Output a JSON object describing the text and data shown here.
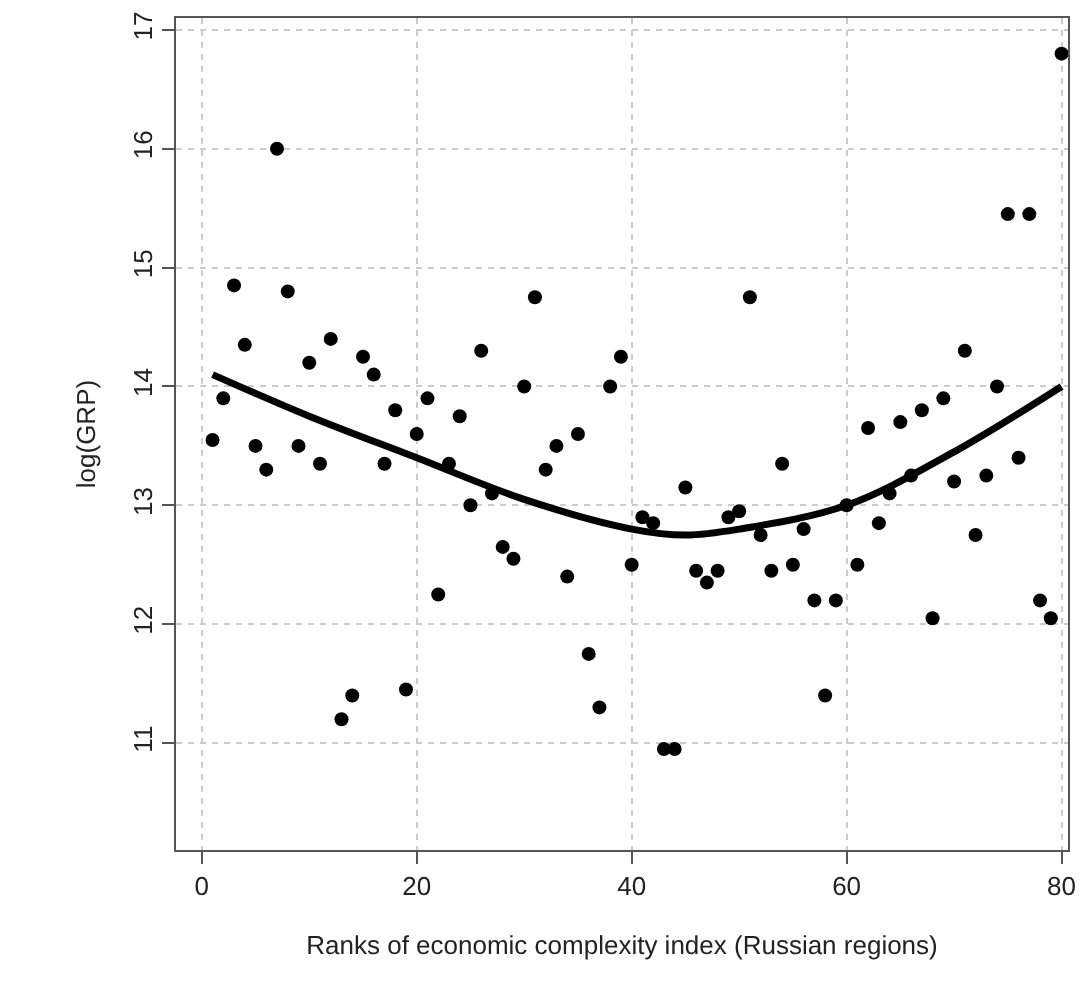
{
  "chart_data": {
    "type": "scatter",
    "xlabel": "Ranks of economic complexity index (Russian regions)",
    "ylabel": "log(GRP)",
    "xlim": [
      -2.4,
      80.6
    ],
    "xticks": [
      0,
      20,
      40,
      60,
      80
    ],
    "ylim": [
      10.1,
      17.1
    ],
    "yticks": [
      11,
      12,
      13,
      14,
      15,
      16,
      17
    ],
    "grid": true,
    "marker": "circle",
    "series": [
      {
        "color": "#000000",
        "x": [
          1,
          2,
          3,
          4,
          5,
          6,
          7,
          8,
          9,
          10,
          11,
          12,
          13,
          14,
          15,
          16,
          17,
          18,
          19,
          20,
          21,
          22,
          23,
          24,
          25,
          26,
          27,
          28,
          29,
          30,
          31,
          32,
          33,
          34,
          35,
          36,
          37,
          38,
          39,
          40,
          41,
          42,
          43,
          44,
          45,
          46,
          47,
          48,
          49,
          50,
          51,
          52,
          53,
          54,
          55,
          56,
          57,
          58,
          59,
          60,
          61,
          62,
          63,
          64,
          65,
          66,
          67,
          68,
          69,
          70,
          71,
          72,
          73,
          74,
          75,
          76,
          77,
          78,
          79,
          80
        ],
        "values": [
          13.55,
          13.9,
          14.85,
          14.35,
          13.5,
          13.3,
          16.0,
          14.8,
          13.5,
          14.2,
          13.35,
          14.4,
          11.2,
          11.4,
          14.25,
          14.1,
          13.35,
          13.8,
          11.45,
          13.6,
          13.9,
          12.25,
          13.35,
          13.75,
          13.0,
          14.3,
          13.1,
          12.65,
          12.55,
          14.0,
          14.75,
          13.3,
          13.5,
          12.4,
          13.6,
          11.75,
          11.3,
          14.0,
          14.25,
          12.5,
          12.9,
          12.85,
          10.95,
          10.95,
          13.15,
          12.45,
          12.35,
          12.45,
          12.9,
          12.95,
          14.75,
          12.75,
          12.45,
          13.35,
          12.5,
          12.8,
          12.2,
          11.4,
          12.2,
          13.0,
          12.5,
          13.65,
          12.85,
          13.1,
          13.7,
          13.25,
          13.8,
          12.05,
          13.9,
          13.2,
          14.3,
          12.75,
          13.25,
          14.0,
          15.45,
          13.4,
          15.45,
          12.2,
          12.05,
          16.8
        ]
      },
      {
        "type": "line",
        "color": "#000000",
        "marker": "none",
        "line_style": "solid",
        "x": [
          1,
          10,
          20,
          30,
          40,
          45,
          50,
          60,
          70,
          80
        ],
        "values": [
          14.1,
          13.75,
          13.4,
          13.05,
          12.8,
          12.75,
          12.8,
          13.0,
          13.45,
          14.0
        ]
      }
    ]
  }
}
